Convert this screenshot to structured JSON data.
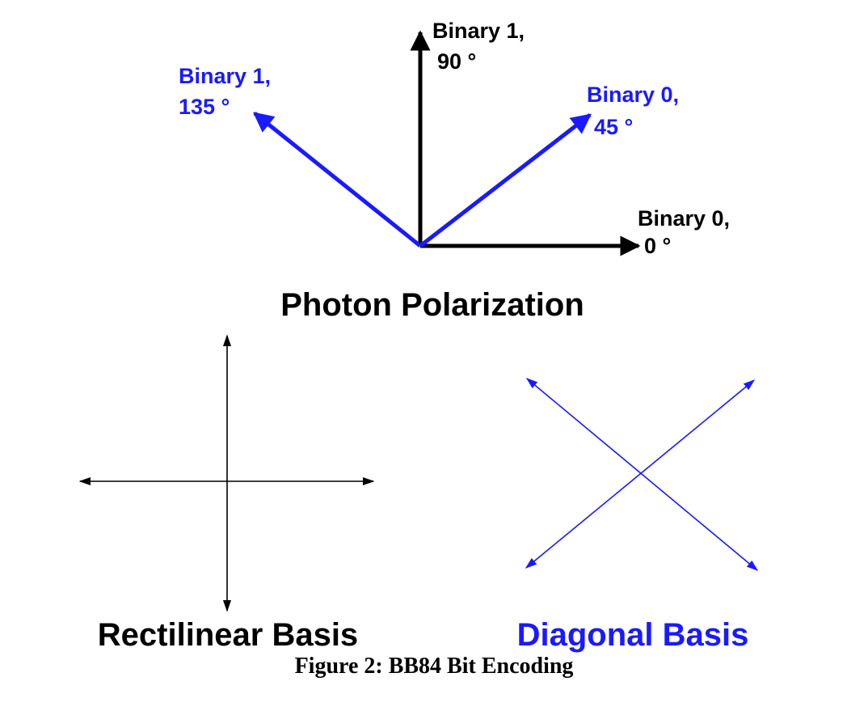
{
  "colors": {
    "black": "#000000",
    "blue": "#1a1aff"
  },
  "polarization": {
    "title": "Photon Polarization",
    "states": [
      {
        "key": "deg0",
        "line1": "Binary 0,",
        "line2": "0 °",
        "color": "black"
      },
      {
        "key": "deg45",
        "line1": "Binary 0,",
        "line2": "45 °",
        "color": "blue"
      },
      {
        "key": "deg90",
        "line1": "Binary 1,",
        "line2": "90 °",
        "color": "black"
      },
      {
        "key": "deg135",
        "line1": "Binary 1,",
        "line2": "135 °",
        "color": "blue"
      }
    ]
  },
  "rectilinear": {
    "label": "Rectilinear Basis"
  },
  "diagonal": {
    "label": "Diagonal Basis"
  },
  "caption": "Figure 2: BB84 Bit Encoding"
}
